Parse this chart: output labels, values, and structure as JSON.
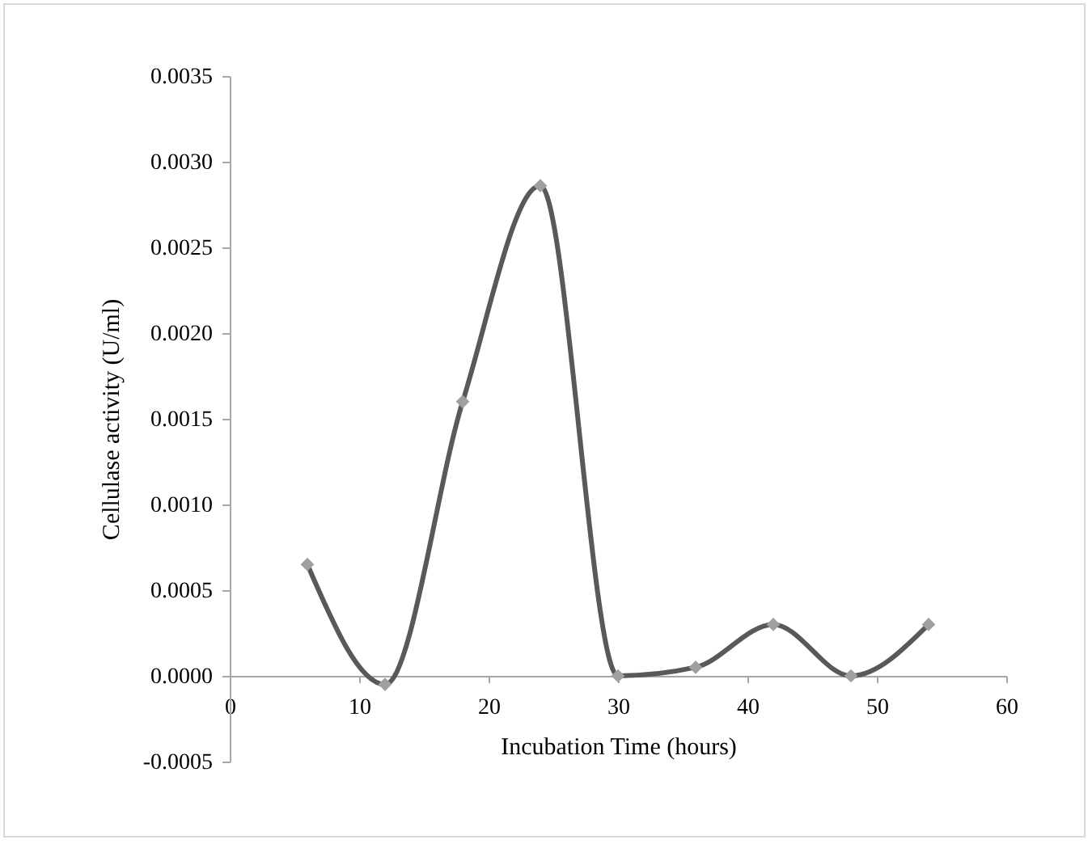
{
  "chart_data": {
    "type": "line",
    "xlabel": "Incubation Time (hours)",
    "ylabel": "Cellulase activity (U/ml)",
    "x": [
      6,
      12,
      18,
      24,
      30,
      36,
      42,
      48,
      54
    ],
    "series": [
      {
        "color": "#595959",
        "values": [
          0.00065,
          -5e-05,
          0.0016,
          0.00286,
          0.0,
          5e-05,
          0.0003,
          0.0,
          0.0003
        ]
      }
    ],
    "marker": "diamond",
    "line_style": "solid",
    "xlim": [
      0,
      60
    ],
    "xticks": [
      0,
      10,
      20,
      30,
      40,
      50,
      60
    ],
    "ylim": [
      -0.0005,
      0.0035
    ],
    "yticks": [
      {
        "value": -0.0005,
        "label": "-0.0005"
      },
      {
        "value": 0,
        "label": "0.0000"
      },
      {
        "value": 0.0005,
        "label": "0.0005"
      },
      {
        "value": 0.001,
        "label": "0.0010"
      },
      {
        "value": 0.0015,
        "label": "0.0015"
      },
      {
        "value": 0.002,
        "label": "0.0020"
      },
      {
        "value": 0.0025,
        "label": "0.0025"
      },
      {
        "value": 0.003,
        "label": "0.0030"
      },
      {
        "value": 0.0035,
        "label": "0.0035"
      }
    ]
  }
}
